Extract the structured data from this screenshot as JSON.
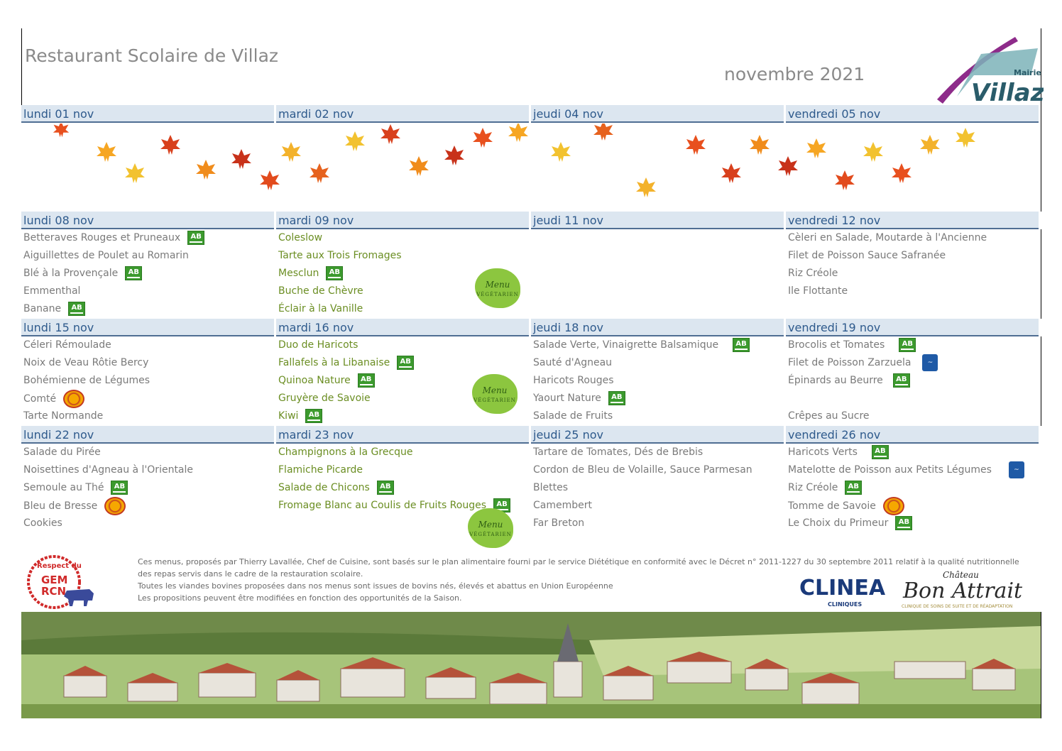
{
  "header": {
    "title": "Restaurant Scolaire de Villaz",
    "month": "novembre 2021",
    "logo_small": "Mairie de",
    "logo_big": "Villaz"
  },
  "weeks": [
    {
      "days": [
        {
          "date": "lundi 01 nov",
          "items": []
        },
        {
          "date": "mardi 02 nov",
          "items": []
        },
        {
          "date": "jeudi 04 nov",
          "items": []
        },
        {
          "date": "vendredi 05 nov",
          "items": []
        }
      ]
    },
    {
      "days": [
        {
          "date": "lundi 08 nov",
          "items": [
            {
              "text": "Betteraves Rouges et Pruneaux",
              "badge": "bio"
            },
            {
              "text": "Aiguillettes de Poulet au Romarin",
              "badge": ""
            },
            {
              "text": "Blé à la Provençale",
              "badge": "bio"
            },
            {
              "text": "Emmenthal",
              "badge": ""
            },
            {
              "text": "Banane",
              "badge": "bio"
            }
          ]
        },
        {
          "date": "mardi 09 nov",
          "vegetarian": true,
          "items": [
            {
              "text": "Coleslow",
              "badge": ""
            },
            {
              "text": "Tarte aux Trois Fromages",
              "badge": ""
            },
            {
              "text": "Mesclun",
              "badge": "bio"
            },
            {
              "text": "Buche de Chèvre",
              "badge": ""
            },
            {
              "text": "Éclair à la Vanille",
              "badge": ""
            }
          ]
        },
        {
          "date": "jeudi 11 nov",
          "items": []
        },
        {
          "date": "vendredi 12 nov",
          "items": [
            {
              "text": "Cèleri en Salade, Moutarde à l'Ancienne",
              "badge": ""
            },
            {
              "text": "Filet de Poisson Sauce Safranée",
              "badge": ""
            },
            {
              "text": "Riz Créole",
              "badge": ""
            },
            {
              "text": "Ile Flottante",
              "badge": ""
            }
          ]
        }
      ]
    },
    {
      "days": [
        {
          "date": "lundi 15 nov",
          "items": [
            {
              "text": "Céleri Rémoulade",
              "badge": ""
            },
            {
              "text": "Noix de Veau Rôtie Bercy",
              "badge": ""
            },
            {
              "text": "Bohémienne de Légumes",
              "badge": ""
            },
            {
              "text": "Comté",
              "badge": "aop"
            },
            {
              "text": "Tarte Normande",
              "badge": ""
            }
          ]
        },
        {
          "date": "mardi 16 nov",
          "vegetarian": true,
          "items": [
            {
              "text": "Duo de Haricots",
              "badge": ""
            },
            {
              "text": "Fallafels à la Libanaise",
              "badge": "bio"
            },
            {
              "text": "Quinoa Nature",
              "badge": "bio"
            },
            {
              "text": "Gruyère de Savoie",
              "badge": ""
            },
            {
              "text": "Kiwi",
              "badge": "bio"
            }
          ]
        },
        {
          "date": "jeudi 18 nov",
          "items": [
            {
              "text": "Salade Verte, Vinaigrette Balsamique",
              "badge": "bio"
            },
            {
              "text": "Sauté d'Agneau",
              "badge": ""
            },
            {
              "text": "Haricots Rouges",
              "badge": ""
            },
            {
              "text": "Yaourt Nature",
              "badge": "bio"
            },
            {
              "text": "Salade de Fruits",
              "badge": ""
            }
          ]
        },
        {
          "date": "vendredi 19 nov",
          "items": [
            {
              "text": "Brocolis et Tomates",
              "badge": "bio"
            },
            {
              "text": "Filet de Poisson Zarzuela",
              "badge": "msc"
            },
            {
              "text": "Épinards au Beurre",
              "badge": "bio"
            },
            {
              "text": "",
              "badge": ""
            },
            {
              "text": "Crêpes au Sucre",
              "badge": ""
            }
          ]
        }
      ]
    },
    {
      "days": [
        {
          "date": "lundi 22 nov",
          "items": [
            {
              "text": "Salade du Pirée",
              "badge": ""
            },
            {
              "text": "Noisettines d'Agneau à l'Orientale",
              "badge": ""
            },
            {
              "text": "Semoule au Thé",
              "badge": "bio"
            },
            {
              "text": "Bleu de Bresse",
              "badge": "aop"
            },
            {
              "text": "Cookies",
              "badge": ""
            }
          ]
        },
        {
          "date": "mardi 23 nov",
          "vegetarian": true,
          "items": [
            {
              "text": "Champignons à la Grecque",
              "badge": ""
            },
            {
              "text": "Flamiche Picarde",
              "badge": ""
            },
            {
              "text": "Salade de Chicons",
              "badge": "bio"
            },
            {
              "text": "Fromage Blanc au Coulis de Fruits Rouges",
              "badge": "bio"
            },
            {
              "text": "",
              "badge": ""
            }
          ]
        },
        {
          "date": "jeudi 25 nov",
          "items": [
            {
              "text": "Tartare de Tomates, Dés de Brebis",
              "badge": ""
            },
            {
              "text": "Cordon de Bleu de Volaille, Sauce Parmesan",
              "badge": ""
            },
            {
              "text": "Blettes",
              "badge": ""
            },
            {
              "text": "Camembert",
              "badge": ""
            },
            {
              "text": "Far Breton",
              "badge": ""
            }
          ]
        },
        {
          "date": "vendredi 26 nov",
          "items": [
            {
              "text": "Haricots Verts",
              "badge": "bio"
            },
            {
              "text": "Matelotte de Poisson aux Petits Légumes",
              "badge": "msc"
            },
            {
              "text": "Riz Créole",
              "badge": "bio"
            },
            {
              "text": "Tomme de Savoie",
              "badge": "aop"
            },
            {
              "text": "Le Choix du Primeur",
              "badge": "bio"
            }
          ]
        }
      ]
    }
  ],
  "badges": {
    "bio": "AB",
    "vegetarian_line1": "Menu",
    "vegetarian_line2": "VÉGÉTARIEN"
  },
  "footer": {
    "lines": [
      "Ces menus, proposés par Thierry Lavallée, Chef de Cuisine, sont basés sur le plan alimentaire fourni par le service Diététique en conformité avec le Décret n° 2011-1227 du 30 septembre 2011 relatif à la qualité nutritionnelle",
      "des repas servis dans le cadre de la restauration scolaire.",
      "Toutes les viandes bovines proposées dans nos menus sont issues de bovins nés, élevés et abattus en Union Européenne",
      "Les propositions peuvent être modifiées en fonction des opportunités de la Saison."
    ],
    "gem_top": "Respect du",
    "gem_mid1": "GEM",
    "gem_mid2": "RCN",
    "clinea_name": "CLINEA",
    "clinea_sub": "CLINIQUES",
    "bon_attrait_top": "Château",
    "bon_attrait_mid": "Bon Attrait",
    "bon_attrait_sub": "CLINIQUE DE SOINS DE SUITE ET DE RÉADAPTATION"
  },
  "colors": {
    "header_bg": "#dce6f0",
    "header_text": "#2e5a8c",
    "vegetarian_text": "#6b8e23",
    "bio_green": "#3c9a2e"
  }
}
